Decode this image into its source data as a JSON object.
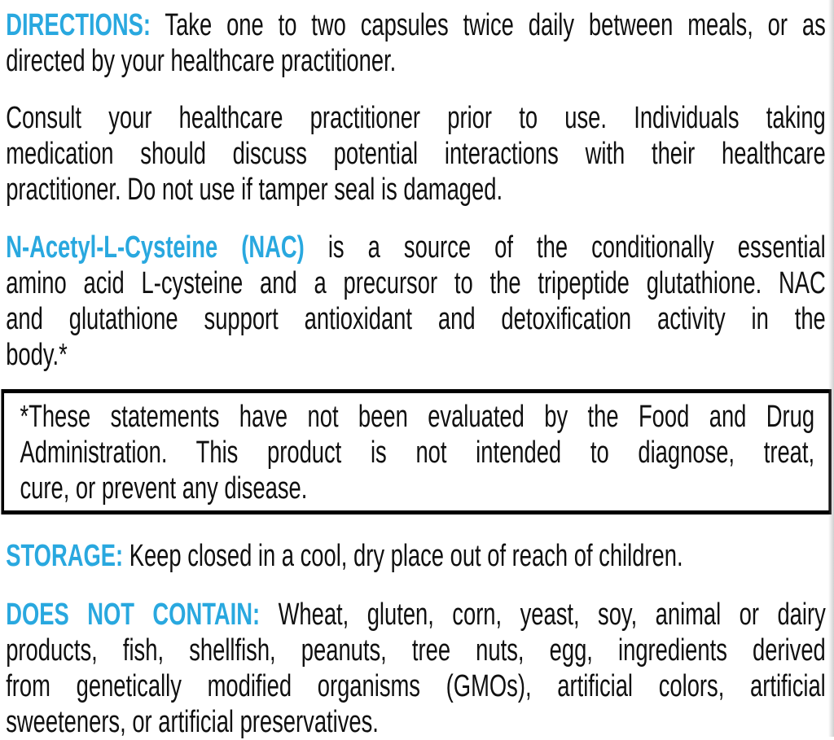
{
  "colors": {
    "accent": "#29A8DF",
    "text": "#101010",
    "box_border": "#000000",
    "background": "#ffffff"
  },
  "label": {
    "paragraphs": [
      {
        "name": "directions",
        "box": false,
        "lines": [
          {
            "justify": true,
            "segments": [
              {
                "role": "heading",
                "text": "DIRECTIONS:"
              },
              {
                "role": "body",
                "text": " Take one to two capsules twice daily between meals, or as"
              }
            ]
          },
          {
            "justify": false,
            "segments": [
              {
                "role": "body",
                "text": "directed by your healthcare practitioner."
              }
            ]
          }
        ]
      },
      {
        "name": "consult",
        "box": false,
        "lines": [
          {
            "justify": true,
            "segments": [
              {
                "role": "body",
                "text": "Consult your healthcare practitioner prior to use. Individuals taking"
              }
            ]
          },
          {
            "justify": true,
            "segments": [
              {
                "role": "body",
                "text": "medication should discuss potential interactions with their healthcare"
              }
            ]
          },
          {
            "justify": false,
            "segments": [
              {
                "role": "body",
                "text": "practitioner. Do not use if tamper seal is damaged."
              }
            ]
          }
        ]
      },
      {
        "name": "nac",
        "box": false,
        "lines": [
          {
            "justify": true,
            "segments": [
              {
                "role": "heading",
                "text": "N-Acetyl-L-Cysteine (NAC)"
              },
              {
                "role": "body",
                "text": " is a source of the conditionally essential"
              }
            ]
          },
          {
            "justify": true,
            "segments": [
              {
                "role": "body",
                "text": "amino acid L-cysteine and a precursor to the tripeptide glutathione. NAC"
              }
            ]
          },
          {
            "justify": true,
            "segments": [
              {
                "role": "body",
                "text": "and glutathione support antioxidant and detoxification activity in the"
              }
            ]
          },
          {
            "justify": false,
            "segments": [
              {
                "role": "body",
                "text": "body.*"
              }
            ]
          }
        ]
      },
      {
        "name": "fda-disclaimer",
        "box": true,
        "lines": [
          {
            "justify": true,
            "segments": [
              {
                "role": "body",
                "text": "*These statements have not been evaluated by the Food and Drug"
              }
            ]
          },
          {
            "justify": true,
            "segments": [
              {
                "role": "body",
                "text": "Administration. This product is not intended to diagnose, treat,"
              }
            ]
          },
          {
            "justify": false,
            "segments": [
              {
                "role": "body",
                "text": "cure, or prevent any disease."
              }
            ]
          }
        ]
      },
      {
        "name": "storage",
        "box": false,
        "lines": [
          {
            "justify": false,
            "segments": [
              {
                "role": "heading",
                "text": "STORAGE:"
              },
              {
                "role": "body",
                "text": " Keep closed in a cool, dry place out of reach of children."
              }
            ]
          }
        ]
      },
      {
        "name": "does-not-contain",
        "box": false,
        "lines": [
          {
            "justify": true,
            "segments": [
              {
                "role": "heading",
                "text": "DOES NOT CONTAIN:"
              },
              {
                "role": "body",
                "text": " Wheat, gluten, corn, yeast, soy, animal or dairy"
              }
            ]
          },
          {
            "justify": true,
            "segments": [
              {
                "role": "body",
                "text": "products, fish, shellfish, peanuts, tree nuts, egg, ingredients derived"
              }
            ]
          },
          {
            "justify": true,
            "segments": [
              {
                "role": "body",
                "text": "from genetically modified organisms (GMOs), artificial colors, artificial"
              }
            ]
          },
          {
            "justify": false,
            "segments": [
              {
                "role": "body",
                "text": "sweeteners, or artificial preservatives."
              }
            ]
          }
        ]
      }
    ]
  }
}
